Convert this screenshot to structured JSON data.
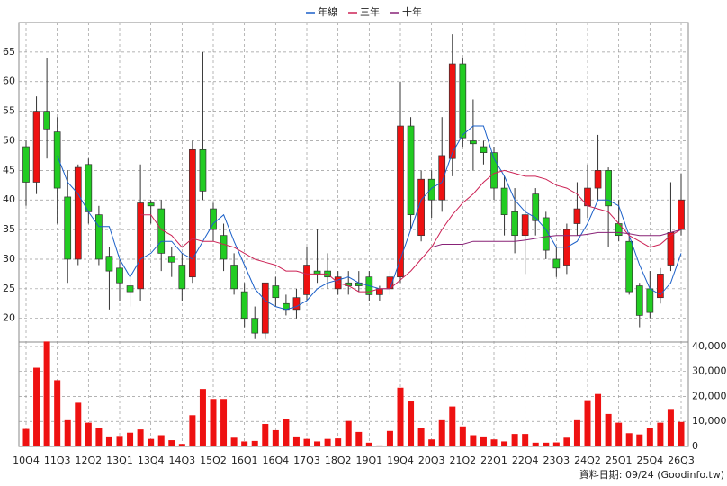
{
  "chart_data": {
    "type": "candlestick",
    "categories": [
      "10Q4",
      null,
      null,
      "11Q3",
      null,
      null,
      "12Q2",
      null,
      null,
      "13Q1",
      null,
      null,
      "13Q4",
      null,
      null,
      "14Q3",
      null,
      null,
      "15Q2",
      null,
      null,
      "16Q1",
      null,
      null,
      "16Q4",
      null,
      null,
      "17Q3",
      null,
      null,
      "18Q2",
      null,
      null,
      "19Q1",
      null,
      null,
      "19Q4",
      null,
      null,
      "20Q3",
      null,
      null,
      "21Q2",
      null,
      null,
      "22Q1",
      null,
      null,
      "22Q4",
      null,
      null,
      "23Q3",
      null,
      null,
      "24Q2",
      null,
      null,
      "25Q1",
      null,
      null,
      "25Q4",
      null,
      null,
      "26Q3"
    ],
    "open": [
      49,
      43,
      55,
      51.5,
      40.5,
      30,
      46,
      37.5,
      30.5,
      28.5,
      25.5,
      25,
      39.5,
      38.5,
      30.5,
      29,
      27,
      48.5,
      38.5,
      34,
      29,
      24.5,
      20,
      17.5,
      25.5,
      22.5,
      21.5,
      24,
      28,
      28,
      25,
      26,
      26,
      27,
      24,
      25,
      27,
      52.5,
      34,
      43.5,
      40,
      47,
      63,
      50,
      49,
      48,
      42,
      38,
      34,
      41,
      37,
      30,
      29,
      36,
      39,
      42,
      45,
      36,
      33,
      25.5,
      25,
      23.5,
      29,
      35
    ],
    "high": [
      50,
      57.5,
      64,
      54,
      45,
      46,
      47,
      39,
      32,
      30,
      27,
      46,
      40,
      40,
      32,
      31,
      50,
      65,
      39.5,
      36,
      31,
      26,
      22,
      26,
      27,
      24,
      25,
      32,
      35,
      31,
      28,
      28,
      28,
      28,
      25.5,
      28,
      60,
      54,
      45,
      45,
      54,
      68,
      64,
      57,
      50,
      49,
      44,
      42,
      40,
      42,
      38,
      32,
      36,
      43,
      46,
      51,
      45.5,
      40,
      34.5,
      26,
      28,
      28.5,
      43,
      44.5
    ],
    "low": [
      39,
      41,
      47,
      36,
      26,
      29,
      36,
      29,
      21.5,
      23,
      22,
      23,
      36,
      28,
      27,
      23,
      26,
      40,
      33,
      28,
      24,
      18.5,
      16.5,
      16.5,
      22,
      20.5,
      20,
      23,
      26,
      25,
      24,
      24,
      24.5,
      23,
      23,
      24,
      26,
      35,
      33,
      37,
      38,
      44,
      49,
      45,
      46,
      40,
      34,
      31,
      27.5,
      34,
      30,
      27,
      27.5,
      34,
      37,
      40,
      32,
      33,
      24,
      18.5,
      20,
      22.5,
      28,
      34
    ],
    "close": [
      43,
      55,
      52,
      42,
      30,
      45.5,
      38,
      30,
      28,
      26,
      24.5,
      39.5,
      39,
      31,
      29.5,
      25,
      48.5,
      41.5,
      35,
      30,
      25,
      20,
      17.5,
      26,
      23.5,
      21.5,
      23.5,
      29,
      27.5,
      27,
      27,
      25.5,
      25.5,
      24,
      25,
      27,
      52.5,
      37.5,
      43.5,
      40,
      47.5,
      63,
      50.5,
      49.5,
      48,
      42,
      37.5,
      34,
      37.5,
      36.5,
      31.5,
      28.5,
      35,
      38.5,
      42,
      45,
      39,
      34,
      24.5,
      20.5,
      21,
      27.5,
      34.5,
      40
    ],
    "up_color": "#ee1111",
    "down_color": "#22cc22",
    "series": [
      {
        "name": "年線",
        "color": "#1a5fc8",
        "values": [
          null,
          null,
          null,
          47.5,
          43,
          41,
          38,
          35.5,
          35.5,
          30,
          27,
          30,
          31,
          33,
          33,
          31,
          30,
          33,
          36,
          37.5,
          33,
          29,
          25,
          23,
          22,
          21.5,
          22,
          23,
          25,
          26,
          26.5,
          27,
          26,
          25.5,
          25,
          25,
          30,
          35,
          40,
          42,
          43,
          48,
          51,
          52.5,
          52.5,
          47,
          44,
          40,
          38,
          37,
          35,
          32,
          32,
          33,
          36,
          40,
          40,
          39,
          34,
          29,
          25,
          24,
          26,
          31
        ]
      },
      {
        "name": "三年",
        "color": "#cc2255",
        "values": [
          null,
          null,
          null,
          null,
          null,
          null,
          null,
          null,
          null,
          null,
          null,
          37.5,
          37.5,
          35,
          34,
          32,
          33.5,
          33,
          33,
          32.5,
          32,
          31,
          30,
          29.5,
          29,
          28,
          28,
          27.5,
          27.5,
          27.5,
          26,
          25.5,
          24.5,
          24.5,
          25,
          25,
          26.5,
          28,
          30,
          32,
          35,
          37.5,
          39.5,
          41,
          43,
          44.5,
          45,
          44.5,
          44,
          44,
          43.5,
          42.5,
          42,
          41,
          39,
          38.5,
          38,
          36,
          34,
          33,
          32,
          32.5,
          34,
          35
        ]
      },
      {
        "name": "十年",
        "color": "#882277",
        "values": [
          null,
          null,
          null,
          null,
          null,
          null,
          null,
          null,
          null,
          null,
          null,
          null,
          null,
          null,
          null,
          null,
          null,
          null,
          null,
          null,
          null,
          null,
          null,
          null,
          null,
          null,
          null,
          null,
          null,
          null,
          null,
          null,
          null,
          null,
          null,
          null,
          null,
          null,
          null,
          32,
          32.5,
          32.5,
          32.5,
          33,
          33,
          33,
          33,
          33,
          33.2,
          33.5,
          33.8,
          34,
          34,
          34,
          34.2,
          34.5,
          34.5,
          34.5,
          34.3,
          34,
          34,
          34,
          34.5,
          35
        ]
      }
    ],
    "ylim": [
      16,
      70
    ],
    "yticks": [
      20,
      25,
      30,
      35,
      40,
      45,
      50,
      55,
      60,
      65
    ],
    "grid": true,
    "volume": {
      "color": "#ee1111",
      "values": [
        7000,
        31500,
        42000,
        26500,
        10500,
        17500,
        9500,
        7500,
        4000,
        4200,
        5500,
        6800,
        3000,
        4500,
        2500,
        1000,
        12500,
        23000,
        19000,
        19000,
        3500,
        2000,
        2200,
        9000,
        6500,
        11000,
        4000,
        3000,
        2000,
        3000,
        3200,
        10200,
        5800,
        1500,
        400,
        6200,
        23500,
        18000,
        7500,
        2800,
        10500,
        16000,
        8000,
        4500,
        4000,
        2800,
        2000,
        5000,
        5000,
        1500,
        1500,
        1600,
        3500,
        10500,
        18500,
        21000,
        13000,
        9500,
        5300,
        4800,
        7500,
        9500,
        15000,
        9800
      ],
      "ylim": [
        0,
        42500
      ],
      "yticks": [
        0,
        {
          "value": 10000,
          "label": "10,000"
        },
        {
          "value": 20000,
          "label": "20,000"
        },
        {
          "value": 30000,
          "label": "30,000"
        },
        {
          "value": 40000,
          "label": "40,000"
        }
      ]
    },
    "footer": "資料日期: 09/24 (Goodinfo.tw)"
  }
}
